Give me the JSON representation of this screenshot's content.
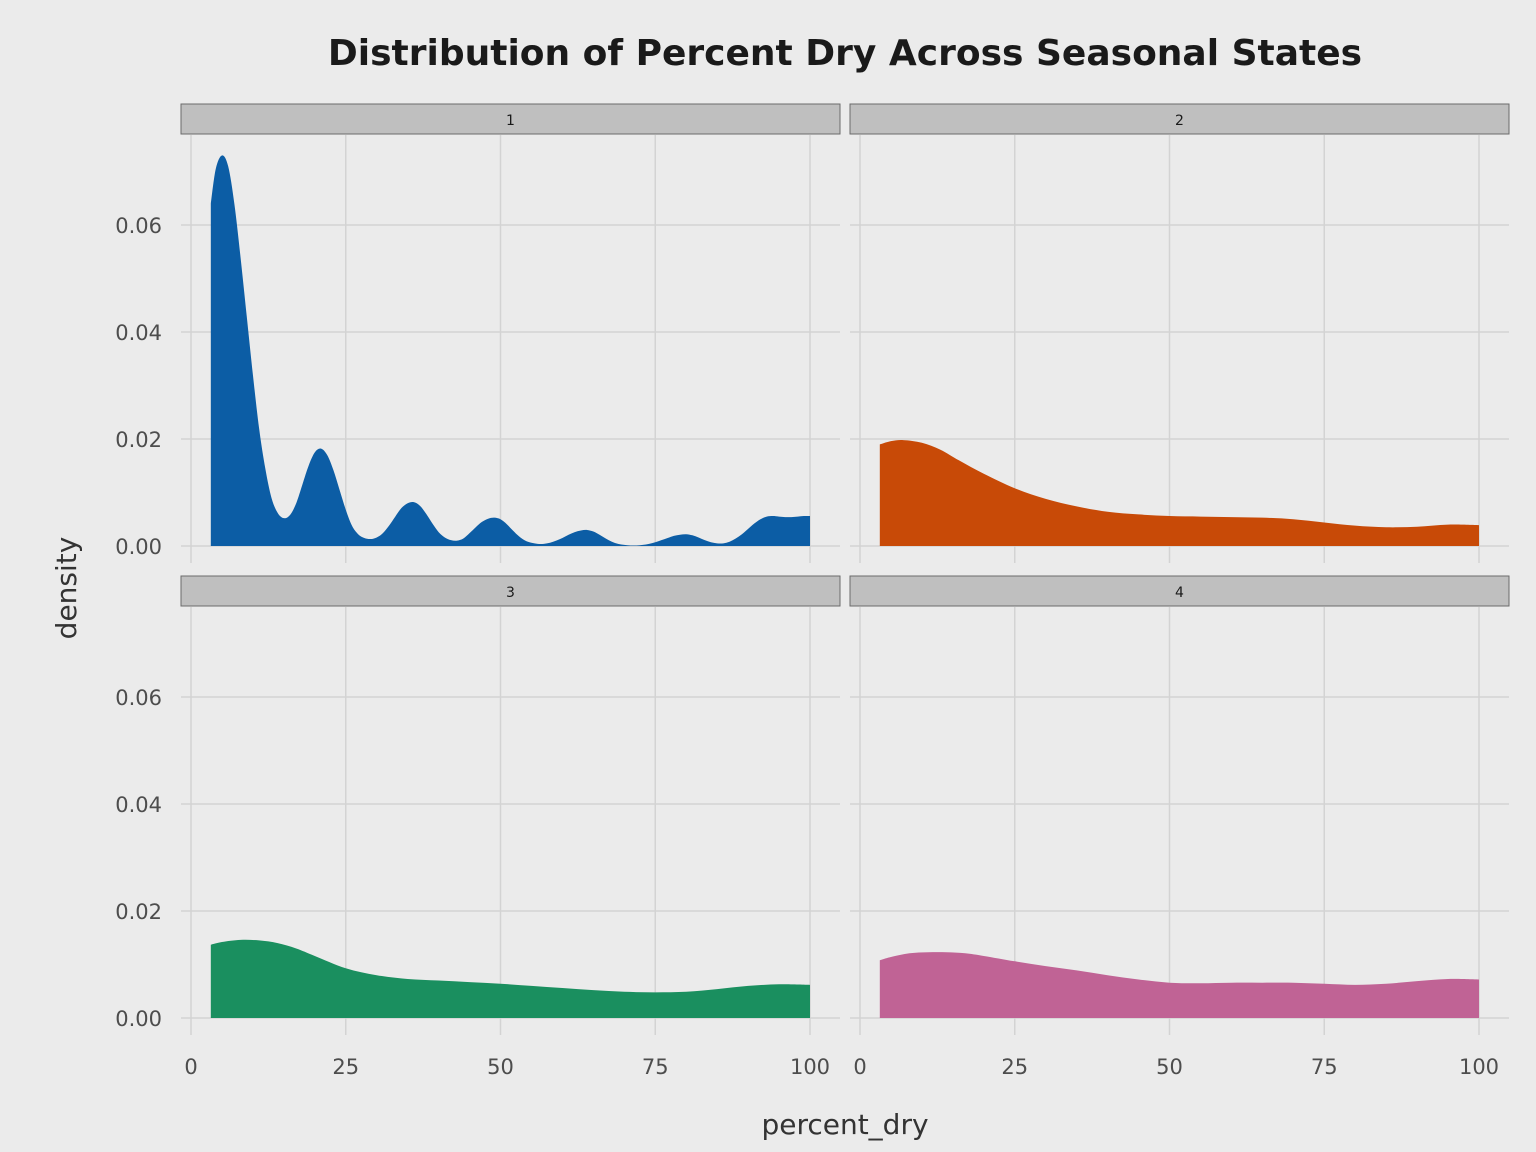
{
  "chart_data": {
    "type": "area",
    "title": "Distribution of Percent Dry Across Seasonal States",
    "xlabel": "percent_dry",
    "ylabel": "density",
    "xlim": [
      0,
      100
    ],
    "ylim": [
      0,
      0.075
    ],
    "x_ticks": [
      0,
      25,
      50,
      75,
      100
    ],
    "x_tick_labels": [
      "0",
      "25",
      "50",
      "75",
      "100"
    ],
    "y_ticks": [
      0,
      0.02,
      0.04,
      0.06
    ],
    "y_tick_labels": [
      "0.00",
      "0.02",
      "0.04",
      "0.06"
    ],
    "grid": true,
    "legend": "none",
    "panels": [
      {
        "strip": "1",
        "color": "#0c5da5",
        "x": [
          3.2,
          4,
          5,
          6,
          7,
          8,
          9,
          10,
          11,
          12,
          13,
          14,
          15,
          16,
          17,
          18,
          19,
          20,
          21,
          22,
          23,
          24,
          25,
          26,
          27,
          28,
          29,
          30,
          31,
          32,
          33,
          34,
          35,
          36,
          37,
          38,
          39,
          40,
          41,
          42,
          43,
          44,
          45,
          46,
          47,
          48,
          49,
          50,
          51,
          52,
          53,
          54,
          55,
          56,
          57,
          58,
          59,
          60,
          61,
          62,
          63,
          64,
          65,
          66,
          67,
          68,
          69,
          70,
          71,
          72,
          73,
          74,
          75,
          76,
          77,
          78,
          79,
          80,
          81,
          82,
          83,
          84,
          85,
          86,
          87,
          88,
          89,
          90,
          91,
          92,
          93,
          94,
          95,
          96,
          97,
          98,
          99,
          100
        ],
        "y": [
          0.064,
          0.0705,
          0.073,
          0.071,
          0.064,
          0.054,
          0.043,
          0.032,
          0.022,
          0.0145,
          0.009,
          0.0062,
          0.0052,
          0.0058,
          0.008,
          0.0115,
          0.015,
          0.0175,
          0.0182,
          0.017,
          0.0142,
          0.0105,
          0.0068,
          0.0038,
          0.0022,
          0.0015,
          0.0013,
          0.0016,
          0.0024,
          0.0038,
          0.0055,
          0.0071,
          0.008,
          0.0082,
          0.0075,
          0.006,
          0.0042,
          0.0026,
          0.0016,
          0.0011,
          0.001,
          0.0014,
          0.0024,
          0.0035,
          0.0045,
          0.0051,
          0.0053,
          0.005,
          0.0041,
          0.0029,
          0.0018,
          0.001,
          0.0006,
          0.0004,
          0.0004,
          0.0006,
          0.001,
          0.0015,
          0.0021,
          0.0026,
          0.0029,
          0.003,
          0.0027,
          0.0021,
          0.0014,
          0.0008,
          0.0004,
          0.0002,
          0.0001,
          0.0001,
          0.0002,
          0.0004,
          0.0007,
          0.0011,
          0.0015,
          0.0019,
          0.0021,
          0.0022,
          0.002,
          0.0016,
          0.0011,
          0.0007,
          0.0005,
          0.0005,
          0.0008,
          0.0014,
          0.0022,
          0.0032,
          0.0042,
          0.005,
          0.0055,
          0.0056,
          0.0055,
          0.0054,
          0.0054,
          0.0055,
          0.0056,
          0.0056
        ]
      },
      {
        "strip": "2",
        "color": "#c84a07",
        "x": [
          3.2,
          5,
          7,
          10,
          13,
          16,
          20,
          25,
          30,
          35,
          40,
          45,
          50,
          55,
          60,
          65,
          70,
          75,
          80,
          85,
          90,
          95,
          100
        ],
        "y": [
          0.019,
          0.0196,
          0.0198,
          0.0193,
          0.018,
          0.016,
          0.0135,
          0.0108,
          0.0088,
          0.0074,
          0.0064,
          0.0059,
          0.0056,
          0.0055,
          0.0054,
          0.0053,
          0.005,
          0.0044,
          0.0038,
          0.0035,
          0.0036,
          0.004,
          0.0039
        ]
      },
      {
        "strip": "3",
        "color": "#1a8f5f",
        "x": [
          3.2,
          5,
          8,
          11,
          14,
          17,
          20,
          25,
          30,
          35,
          40,
          45,
          50,
          55,
          60,
          65,
          70,
          75,
          80,
          85,
          90,
          95,
          100
        ],
        "y": [
          0.0137,
          0.0142,
          0.0146,
          0.0145,
          0.014,
          0.013,
          0.0116,
          0.0093,
          0.008,
          0.0073,
          0.007,
          0.0067,
          0.0064,
          0.006,
          0.0056,
          0.0052,
          0.0049,
          0.0048,
          0.0049,
          0.0054,
          0.006,
          0.0063,
          0.0062
        ]
      },
      {
        "strip": "4",
        "color": "#c06395",
        "x": [
          3.2,
          5,
          8,
          11,
          14,
          17,
          20,
          25,
          30,
          35,
          40,
          45,
          50,
          55,
          60,
          65,
          70,
          75,
          80,
          85,
          90,
          95,
          100
        ],
        "y": [
          0.0108,
          0.0114,
          0.0121,
          0.0123,
          0.0123,
          0.0121,
          0.0116,
          0.0106,
          0.0097,
          0.0089,
          0.008,
          0.0072,
          0.0066,
          0.0065,
          0.0066,
          0.0066,
          0.0066,
          0.0064,
          0.0062,
          0.0064,
          0.0069,
          0.0073,
          0.0072
        ]
      }
    ]
  }
}
